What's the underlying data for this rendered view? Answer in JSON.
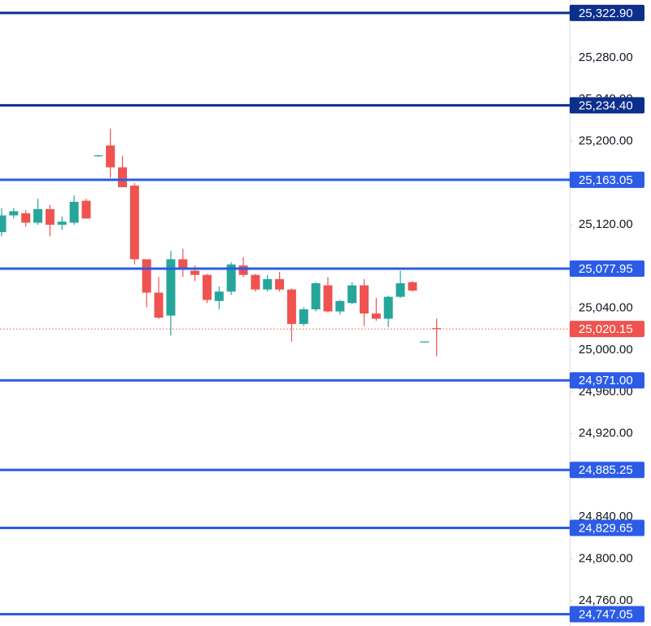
{
  "chart_data": {
    "type": "candlestick",
    "open": [
      25113,
      25129,
      25131,
      25122,
      25135,
      25120,
      25122,
      25143,
      25186,
      25196,
      25175,
      25157.5,
      25087,
      25055,
      25033,
      25087,
      25076,
      25072,
      25047,
      25056,
      25081,
      25072,
      25058,
      25068,
      25058,
      25025,
      25039,
      25062,
      25037,
      25045,
      25062,
      25035,
      25030,
      25051,
      25065,
      25008,
      25021
    ],
    "high": [
      25136,
      25136,
      25134,
      25145,
      25139,
      25128,
      25148,
      25145,
      25187,
      25212,
      25186,
      25160,
      25087,
      25070,
      25095,
      25097,
      25081,
      25073,
      25061,
      25084,
      25089,
      25073,
      25072,
      25075,
      25059,
      25041,
      25065,
      25070,
      25048,
      25065,
      25068,
      25050,
      25052,
      25076,
      25066,
      25008.5,
      25030
    ],
    "low": [
      25109,
      25126,
      25118,
      25120,
      25109,
      25115,
      25120,
      25126,
      25185,
      25165,
      25156,
      25082,
      25041,
      25030,
      25014,
      25070,
      25066,
      25045,
      25039,
      25053,
      25070,
      25056,
      25056,
      25056,
      25008,
      25023,
      25037,
      25036,
      25034,
      25044,
      25023,
      25028,
      25022,
      25050,
      25056,
      25007.5,
      24994
    ],
    "close": [
      25129,
      25133,
      25122,
      25135,
      25120,
      25123,
      25142,
      25126,
      25186.5,
      25175,
      25156,
      25087,
      25055,
      25031,
      25087,
      25078,
      25072,
      25048,
      25056,
      25082,
      25072,
      25058,
      25068,
      25058,
      25025,
      25039,
      25064,
      25037,
      25047,
      25062,
      25035,
      25030,
      25051,
      25064,
      25057,
      25008.2,
      25020.15
    ],
    "up_color": "#26a69a",
    "down_color": "#ef5350",
    "ylim": [
      24735.7,
      25335.3
    ],
    "yticks": [
      {
        "value": 24760,
        "label": "24,760.00"
      },
      {
        "value": 24800,
        "label": "24,800.00"
      },
      {
        "value": 24840,
        "label": "24,840.00"
      },
      {
        "value": 24920,
        "label": "24,920.00"
      },
      {
        "value": 24960,
        "label": "24,960.00"
      },
      {
        "value": 25000,
        "label": "25,000.00"
      },
      {
        "value": 25040,
        "label": "25,040.00"
      },
      {
        "value": 25120,
        "label": "25,120.00"
      },
      {
        "value": 25200,
        "label": "25,200.00"
      },
      {
        "value": 25240,
        "label": "25,240.00"
      },
      {
        "value": 25280,
        "label": "25,280.00"
      }
    ],
    "levels": [
      {
        "value": 25322.9,
        "label": "25,322.90",
        "color": "#0c2e8c"
      },
      {
        "value": 25234.4,
        "label": "25,234.40",
        "color": "#0c2e8c"
      },
      {
        "value": 25163.05,
        "label": "25,163.05",
        "color": "#2c5ce6"
      },
      {
        "value": 25077.95,
        "label": "25,077.95",
        "color": "#2c5ce6"
      },
      {
        "value": 24971,
        "label": "24,971.00",
        "color": "#2c5ce6"
      },
      {
        "value": 24885.25,
        "label": "24,885.25",
        "color": "#2c5ce6"
      },
      {
        "value": 24829.65,
        "label": "24,829.65",
        "color": "#2c5ce6"
      },
      {
        "value": 24747.05,
        "label": "24,747.05",
        "color": "#2c5ce6"
      }
    ],
    "last_price": {
      "value": 25020.15,
      "label": "25,020.15",
      "color": "#ef5350"
    }
  }
}
